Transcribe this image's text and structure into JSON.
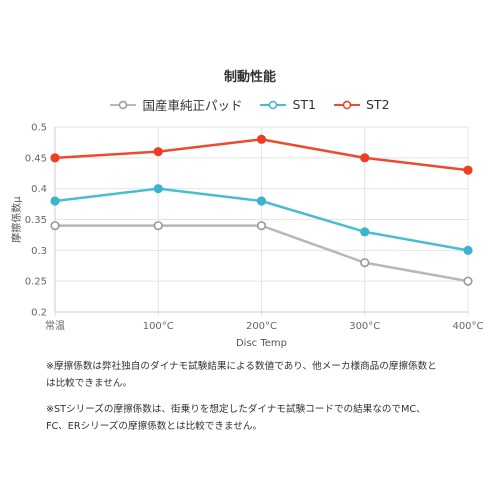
{
  "chart_data": {
    "type": "line",
    "title": "制動性能",
    "xlabel": "Disc Temp",
    "ylabel": "摩擦係数μ",
    "categories": [
      "常温",
      "100°C",
      "200°C",
      "300°C",
      "400°C"
    ],
    "ylim": [
      0.2,
      0.5
    ],
    "yticks": [
      "0.2",
      "0.25",
      "0.3",
      "0.35",
      "0.4",
      "0.45",
      "0.5"
    ],
    "grid": true,
    "legend_position": "top",
    "series": [
      {
        "name": "国産車純正パッド",
        "values": [
          0.34,
          0.34,
          0.34,
          0.28,
          0.25
        ],
        "color": "#b8b8b8",
        "marker": "#999999",
        "hollow": true
      },
      {
        "name": "ST1",
        "values": [
          0.38,
          0.4,
          0.38,
          0.33,
          0.3
        ],
        "color": "#4bbcd6",
        "marker": "#3db4cf",
        "hollow": false
      },
      {
        "name": "ST2",
        "values": [
          0.45,
          0.46,
          0.48,
          0.45,
          0.43
        ],
        "color": "#ee4a32",
        "marker": "#ee3d23",
        "hollow": false
      }
    ]
  },
  "notes": [
    "※摩擦係数は弊社独自のダイナモ試験結果による数値であり、他メーカ様商品の摩擦係数と\nは比較できません。",
    "※STシリーズの摩擦係数は、街乗りを想定したダイナモ試験コードでの結果なのでMC、\nFC、ERシリーズの摩擦係数とは比較できません。"
  ]
}
